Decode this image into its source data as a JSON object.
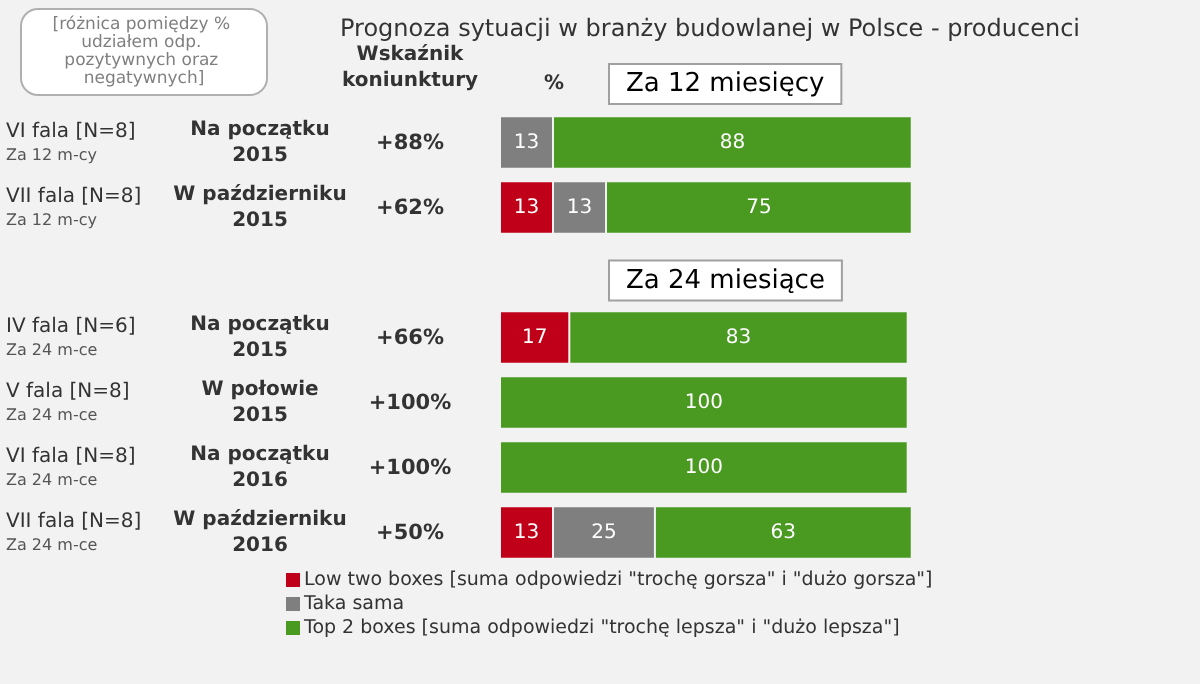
{
  "chart_data": {
    "type": "bar",
    "orientation": "horizontal",
    "stacked": true,
    "legend": "bottom",
    "title": "Prognoza sytuacji w branży budowlanej w Polsce - producenci",
    "categories": [
      "VI fala [N=8]\nZa 12 m-cy",
      "VII fala [N=8]\nZa 12 m-cy",
      null,
      "IV fala [N=6]\nZa 24 m-ce",
      "V fala [N=8]\nZa 24 m-ce",
      "VI fala [N=8]\nZa 24 m-ce",
      "VII fala [N=8]\nZa 24 m-ce"
    ],
    "series": [
      {
        "name": "Low two boxes [suma odpowiedzi \"trochę gorsza\" i \"dużo gorsza\"]",
        "color": "#c00018",
        "values": [
          null,
          13,
          null,
          17,
          null,
          null,
          13
        ],
        "value_labels": [
          null,
          "13",
          null,
          "17",
          null,
          null,
          "13"
        ]
      },
      {
        "name": "Taka sama",
        "color": "#7f7f7f",
        "values": [
          13,
          13,
          null,
          null,
          null,
          null,
          25
        ],
        "value_labels": [
          "13",
          "13",
          null,
          null,
          null,
          null,
          "25"
        ]
      },
      {
        "name": "Top 2 boxes [suma odpowiedzi \"trochę lepsza\" i \"dużo lepsza\"]",
        "color": "#4a9a22",
        "values": [
          88,
          75,
          null,
          83,
          100,
          100,
          63
        ],
        "value_labels": [
          "88",
          "75",
          null,
          "83",
          "100",
          "100",
          "63"
        ]
      }
    ],
    "annotations": [
      "[różnica pomiędzy % udziałem odp. pozytywnych oraz negatywnych]",
      "Wskaźnik\nkoniunktury",
      "%",
      "Za 12 miesięcy",
      "Za 24 miesiące",
      "Na początku\n2015",
      "+88%",
      "W październiku\n2015",
      "+62%",
      "Na początku\n2015",
      "+66%",
      "W połowie\n2015",
      "+100%",
      "Na początku\n2016",
      "+100%",
      "W październiku\n2016",
      "+50%"
    ]
  }
}
